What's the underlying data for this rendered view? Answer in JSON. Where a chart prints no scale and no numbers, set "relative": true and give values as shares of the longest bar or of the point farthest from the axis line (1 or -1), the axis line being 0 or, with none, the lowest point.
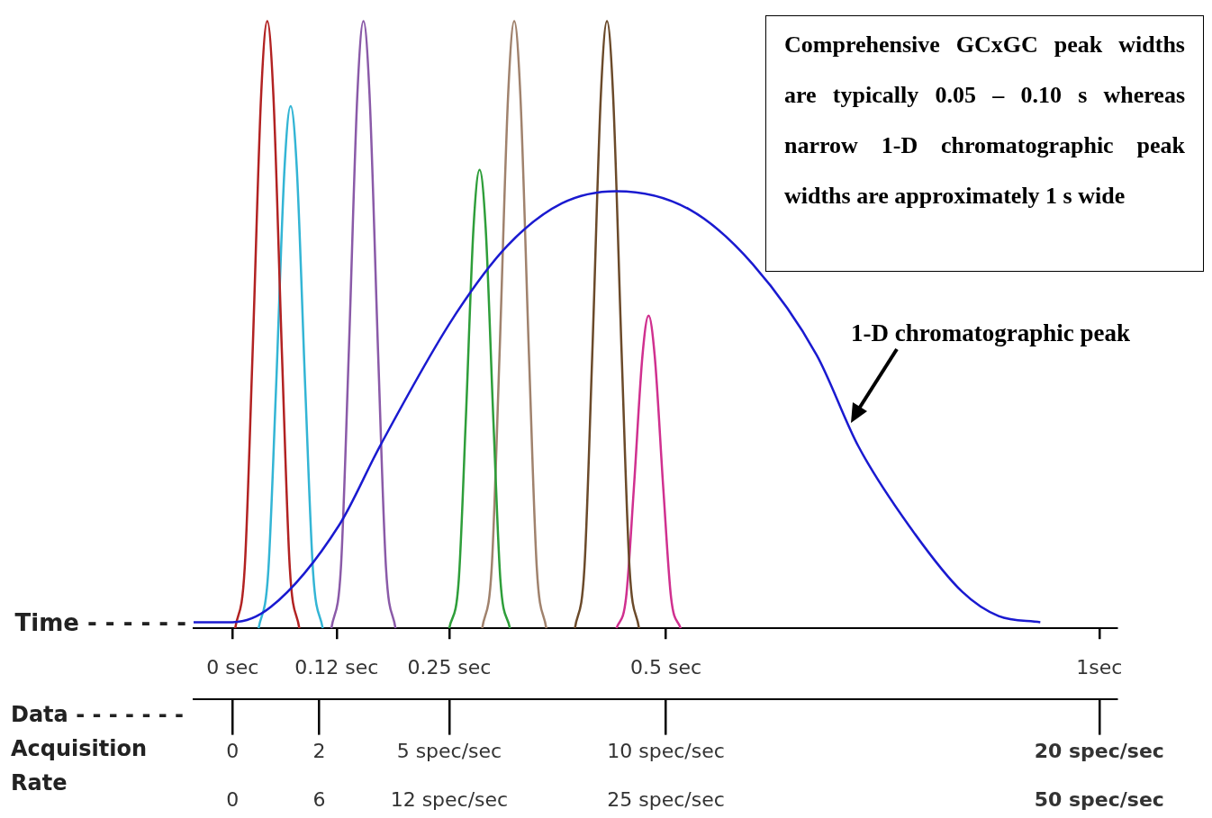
{
  "chart_data": {
    "type": "line",
    "relative": true,
    "xlabel": "Time - - - - - -",
    "x2label": "Data - - - - - - - Acquisition Rate",
    "xlim": [
      -0.045,
      1.02
    ],
    "xticks": [
      {
        "value": 0,
        "label": "0 sec"
      },
      {
        "value": 0.12,
        "label": "0.12 sec"
      },
      {
        "value": 0.25,
        "label": "0.25 sec"
      },
      {
        "value": 0.5,
        "label": "0.5 sec"
      },
      {
        "value": 1,
        "label": "1sec"
      }
    ],
    "x2lim": [
      -0.9,
      20.4
    ],
    "x2ticks": [
      0,
      2,
      {
        "value": 5,
        "label": "5 spec/sec"
      },
      {
        "value": 10,
        "label": "10 spec/sec"
      },
      {
        "value": 20,
        "label": "20 spec/sec"
      }
    ],
    "series": [
      {
        "color": "#1a1ad0",
        "x": [
          -0.045,
          0,
          0.044,
          0.123,
          0.17,
          0.254,
          0.317,
          0.38,
          0.443,
          0.527,
          0.6,
          0.674,
          0.722,
          0.78,
          0.842,
          0.884,
          0.932
        ],
        "values": [
          0.01,
          0.01,
          0.035,
          0.17,
          0.3,
          0.51,
          0.63,
          0.7,
          0.72,
          0.69,
          0.6,
          0.45,
          0.3,
          0.17,
          0.06,
          0.02,
          0.01
        ]
      },
      {
        "color": "#b22222",
        "x": [
          0.003,
          0.014,
          0.023,
          0.033,
          0.04,
          0.047,
          0.057,
          0.066,
          0.077
        ],
        "values": [
          0,
          0.1,
          0.45,
          0.88,
          1,
          0.88,
          0.45,
          0.1,
          0
        ]
      },
      {
        "color": "#33b5d5",
        "x": [
          0.03,
          0.041,
          0.05,
          0.06,
          0.067,
          0.074,
          0.084,
          0.093,
          0.104
        ],
        "values": [
          0,
          0.09,
          0.39,
          0.76,
          0.86,
          0.76,
          0.39,
          0.09,
          0
        ]
      },
      {
        "color": "#8a5aa8",
        "x": [
          0.114,
          0.125,
          0.134,
          0.144,
          0.151,
          0.158,
          0.168,
          0.177,
          0.188
        ],
        "values": [
          0,
          0.1,
          0.45,
          0.88,
          1,
          0.88,
          0.45,
          0.1,
          0
        ]
      },
      {
        "color": "#2e9e3a",
        "x": [
          0.25,
          0.261,
          0.269,
          0.278,
          0.285,
          0.292,
          0.301,
          0.309,
          0.32
        ],
        "values": [
          0,
          0.08,
          0.34,
          0.66,
          0.755,
          0.66,
          0.34,
          0.08,
          0
        ]
      },
      {
        "color": "#a0826d",
        "x": [
          0.288,
          0.299,
          0.308,
          0.318,
          0.325,
          0.332,
          0.342,
          0.351,
          0.362
        ],
        "values": [
          0,
          0.1,
          0.45,
          0.88,
          1,
          0.88,
          0.45,
          0.1,
          0
        ]
      },
      {
        "color": "#6b4a2a",
        "x": [
          0.395,
          0.406,
          0.415,
          0.425,
          0.432,
          0.439,
          0.449,
          0.458,
          0.469
        ],
        "values": [
          0,
          0.1,
          0.45,
          0.88,
          1,
          0.88,
          0.45,
          0.1,
          0
        ]
      },
      {
        "color": "#d0308f",
        "x": [
          0.443,
          0.454,
          0.463,
          0.473,
          0.48,
          0.487,
          0.497,
          0.506,
          0.517
        ],
        "values": [
          0,
          0.05,
          0.23,
          0.45,
          0.515,
          0.45,
          0.23,
          0.05,
          0
        ]
      }
    ],
    "annotations": [
      "Comprehensive GCxGC peak widths are typically 0.05 – 0.10 s whereas narrow 1-D chromatographic peak widths are approximately 1 s wide",
      "1-D chromatographic peak",
      "0",
      "6",
      "12 spec/sec",
      "25 spec/sec",
      "50 spec/sec"
    ]
  }
}
